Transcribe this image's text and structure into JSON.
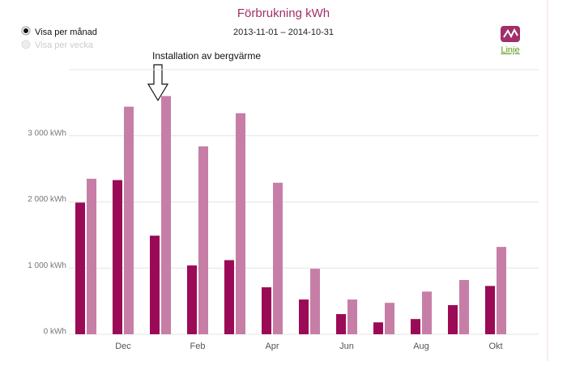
{
  "chart_data": {
    "type": "bar",
    "title": "Förbrukning kWh",
    "subtitle": "2013-11-01 – 2014-10-31",
    "annotation": "Installation av bergvärme",
    "categories": [
      null,
      "Dec",
      null,
      "Feb",
      null,
      "Apr",
      null,
      "Jun",
      null,
      "Aug",
      null,
      "Okt"
    ],
    "series": [
      {
        "color": "#9b0a56",
        "values": [
          1990,
          2330,
          1490,
          1040,
          1120,
          710,
          525,
          305,
          180,
          230,
          440,
          730
        ]
      },
      {
        "color": "#c77ea6",
        "values": [
          2350,
          3440,
          3600,
          2840,
          3340,
          2290,
          990,
          525,
          475,
          645,
          820,
          1320
        ]
      }
    ],
    "ylim": [
      0,
      4000
    ],
    "yticks": [
      {
        "value": 0,
        "label": "0 kWh"
      },
      {
        "value": 1000,
        "label": "1 000 kWh"
      },
      {
        "value": 2000,
        "label": "2 000 kWh"
      },
      {
        "value": 3000,
        "label": "3 000 kWh"
      }
    ],
    "grid": true
  },
  "controls": {
    "options": [
      "Visa per månad",
      "Visa per vecka"
    ],
    "link": "Linje"
  }
}
